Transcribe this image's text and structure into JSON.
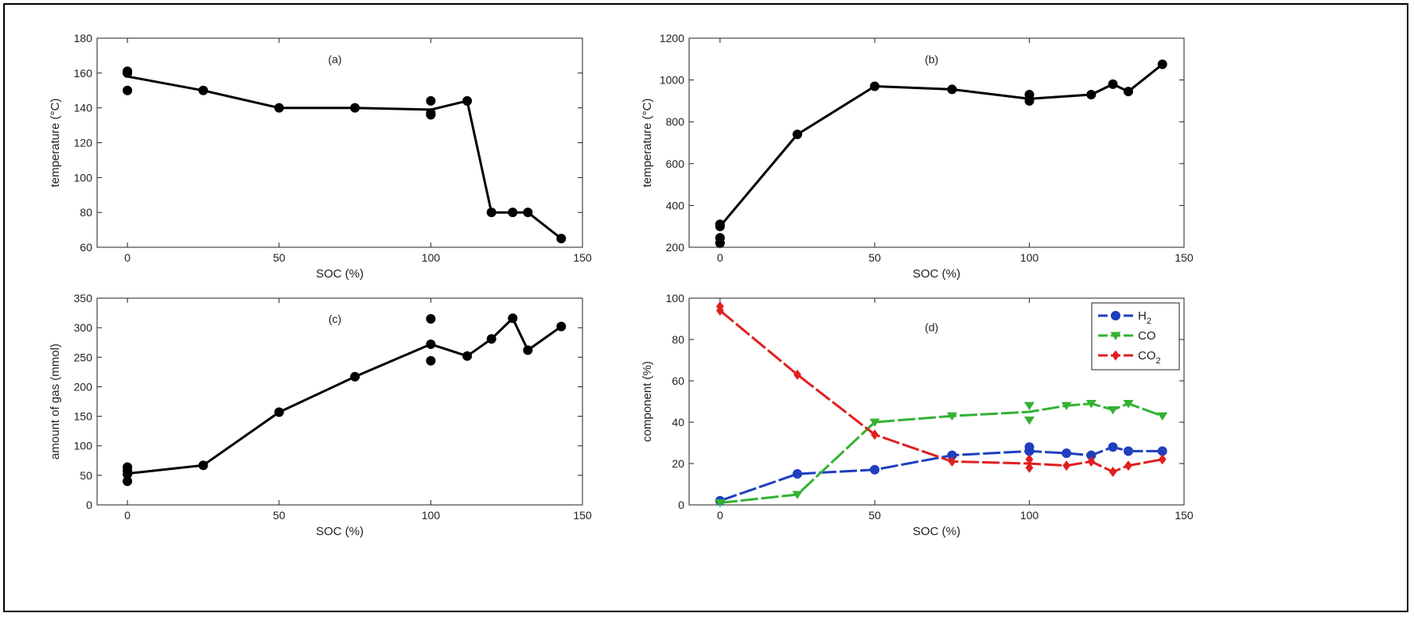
{
  "chart_data": [
    {
      "id": "a",
      "type": "line",
      "annotation": "(a)",
      "xlabel": "SOC (%)",
      "ylabel": "temperature (°C)",
      "xlim": [
        -10,
        150
      ],
      "ylim": [
        60,
        180
      ],
      "xticks": [
        0,
        50,
        100,
        150
      ],
      "yticks": [
        60,
        80,
        100,
        120,
        140,
        160,
        180
      ],
      "grid": false,
      "series": [
        {
          "color": "#000000",
          "marker": "circle",
          "line_x": [
            0,
            25,
            50,
            75,
            100,
            112,
            120,
            127,
            132,
            143
          ],
          "line_y": [
            158,
            150,
            140,
            140,
            139,
            144,
            80,
            80,
            80,
            65
          ],
          "points_x": [
            0,
            0,
            0,
            25,
            50,
            75,
            100,
            100,
            100,
            112,
            120,
            127,
            132,
            143
          ],
          "points_y": [
            161,
            160,
            150,
            150,
            140,
            140,
            144,
            137,
            136,
            144,
            80,
            80,
            80,
            65
          ]
        }
      ]
    },
    {
      "id": "b",
      "type": "line",
      "annotation": "(b)",
      "xlabel": "SOC (%)",
      "ylabel": "temperature (°C)",
      "xlim": [
        -10,
        150
      ],
      "ylim": [
        200,
        1200
      ],
      "xticks": [
        0,
        50,
        100,
        150
      ],
      "yticks": [
        200,
        400,
        600,
        800,
        1000,
        1200
      ],
      "grid": false,
      "series": [
        {
          "color": "#000000",
          "marker": "circle",
          "line_x": [
            0,
            25,
            50,
            75,
            100,
            120,
            127,
            132,
            143
          ],
          "line_y": [
            300,
            740,
            970,
            955,
            910,
            930,
            980,
            945,
            1075
          ],
          "points_x": [
            0,
            0,
            0,
            0,
            25,
            50,
            75,
            100,
            100,
            120,
            127,
            132,
            143
          ],
          "points_y": [
            310,
            300,
            245,
            220,
            740,
            970,
            955,
            930,
            900,
            930,
            980,
            945,
            1075
          ]
        }
      ]
    },
    {
      "id": "c",
      "type": "line",
      "annotation": "(c)",
      "xlabel": "SOC (%)",
      "ylabel": "amount of gas (mmol)",
      "xlim": [
        -10,
        150
      ],
      "ylim": [
        0,
        350
      ],
      "xticks": [
        0,
        50,
        100,
        150
      ],
      "yticks": [
        0,
        50,
        100,
        150,
        200,
        250,
        300,
        350
      ],
      "grid": false,
      "series": [
        {
          "color": "#000000",
          "marker": "circle",
          "line_x": [
            0,
            25,
            50,
            75,
            100,
            112,
            120,
            127,
            132,
            143
          ],
          "line_y": [
            53,
            67,
            157,
            217,
            272,
            252,
            281,
            316,
            262,
            302
          ],
          "points_x": [
            0,
            0,
            0,
            0,
            25,
            50,
            75,
            100,
            100,
            100,
            112,
            120,
            127,
            132,
            143
          ],
          "points_y": [
            64,
            58,
            52,
            40,
            67,
            157,
            217,
            315,
            272,
            244,
            252,
            281,
            316,
            262,
            302
          ]
        }
      ]
    },
    {
      "id": "d",
      "type": "line",
      "annotation": "(d)",
      "xlabel": "SOC (%)",
      "ylabel": "component (%)",
      "xlim": [
        -10,
        150
      ],
      "ylim": [
        0,
        100
      ],
      "xticks": [
        0,
        50,
        100,
        150
      ],
      "yticks": [
        0,
        20,
        40,
        60,
        80,
        100
      ],
      "grid": false,
      "legend_position": "top-right",
      "series": [
        {
          "name": "H",
          "name_sub": "2",
          "color": "#1f3fbf",
          "marker": "circle",
          "line_x": [
            0,
            25,
            50,
            75,
            100,
            112,
            120,
            127,
            132,
            143
          ],
          "line_y": [
            2,
            15,
            17,
            24,
            26,
            25,
            24,
            28,
            26,
            26
          ],
          "points_x": [
            0,
            25,
            50,
            75,
            100,
            100,
            112,
            120,
            127,
            132,
            143
          ],
          "points_y": [
            2,
            15,
            17,
            24,
            28,
            26,
            25,
            24,
            28,
            26,
            26
          ]
        },
        {
          "name": "CO",
          "name_sub": "",
          "color": "#33b233",
          "marker": "triangle-down",
          "line_x": [
            0,
            25,
            50,
            75,
            100,
            112,
            120,
            127,
            132,
            143
          ],
          "line_y": [
            1,
            5,
            40,
            43,
            45,
            48,
            49,
            46,
            49,
            43
          ],
          "points_x": [
            0,
            25,
            50,
            75,
            100,
            100,
            112,
            120,
            127,
            132,
            143
          ],
          "points_y": [
            1,
            5,
            40,
            43,
            48,
            41,
            48,
            49,
            46,
            49,
            43
          ]
        },
        {
          "name": "CO",
          "name_sub": "2",
          "color": "#e01f1f",
          "marker": "diamond",
          "line_x": [
            0,
            25,
            50,
            75,
            100,
            112,
            120,
            127,
            132,
            143
          ],
          "line_y": [
            94,
            63,
            34,
            21,
            20,
            19,
            21,
            16,
            19,
            22
          ],
          "points_x": [
            0,
            0,
            25,
            50,
            75,
            100,
            100,
            112,
            120,
            127,
            132,
            143
          ],
          "points_y": [
            96,
            94,
            63,
            34,
            21,
            22,
            18,
            19,
            21,
            16,
            19,
            22
          ]
        }
      ]
    }
  ]
}
